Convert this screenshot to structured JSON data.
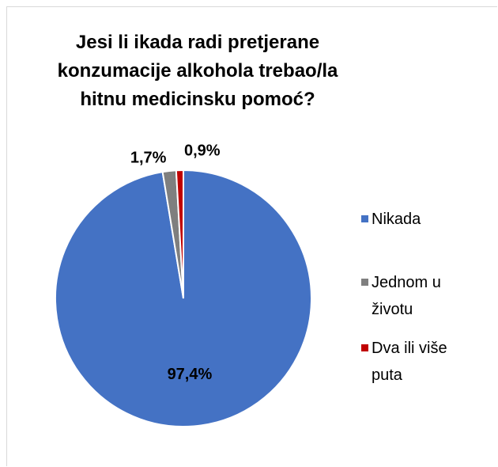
{
  "chart_data": {
    "type": "pie",
    "title": "Jesi li ikada radi pretjerane konzumacije alkohola trebao/la hitnu medicinsku pomoć?",
    "categories": [
      "Nikada",
      "Jednom u životu",
      "Dva ili više puta"
    ],
    "values": [
      97.4,
      1.7,
      0.9
    ],
    "value_labels": [
      "97,4%",
      "1,7%",
      "0,9%"
    ],
    "colors": [
      "#4472c4",
      "#7f7f7f",
      "#c00000"
    ],
    "legend": "right"
  }
}
